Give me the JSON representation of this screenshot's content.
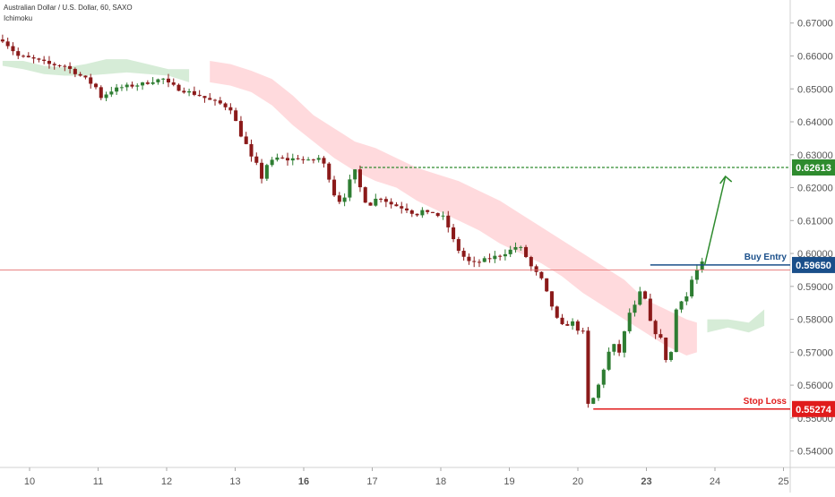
{
  "header": {
    "title": "Australian Dollar / U.S. Dollar, 60, SAXO",
    "indicator": "Ichimoku"
  },
  "colors": {
    "up_candle": "#2e7d32",
    "down_candle": "#8b1a1a",
    "cloud_bull": "#c8e6c9",
    "cloud_bear": "#ffcdd2",
    "target_line": "#2e8b2e",
    "buy_entry": "#1a4f8a",
    "stop_loss": "#e01b1b",
    "price_line": "#e57373",
    "axis_text": "#555555"
  },
  "chart_data": {
    "type": "candlestick",
    "symbol": "Australian Dollar / U.S. Dollar",
    "timeframe": "60",
    "source": "SAXO",
    "ylim": [
      0.535,
      0.677
    ],
    "y_ticks": [
      "0.67000",
      "0.66000",
      "0.65000",
      "0.64000",
      "0.63000",
      "0.62000",
      "0.61000",
      "0.60000",
      "0.59000",
      "0.58000",
      "0.57000",
      "0.56000",
      "0.55000",
      "0.54000"
    ],
    "x_ticks": [
      "10",
      "11",
      "12",
      "13",
      "16",
      "17",
      "18",
      "19",
      "20",
      "23",
      "24",
      "25"
    ],
    "x_tick_bold": [
      false,
      false,
      false,
      false,
      true,
      false,
      false,
      false,
      false,
      true,
      false,
      false
    ],
    "close_path": [
      [
        0,
        0.665
      ],
      [
        3,
        0.66
      ],
      [
        6,
        0.659
      ],
      [
        9,
        0.6575
      ],
      [
        12,
        0.657
      ],
      [
        14,
        0.655
      ],
      [
        16,
        0.653
      ],
      [
        18,
        0.6505
      ],
      [
        19,
        0.6475
      ],
      [
        21,
        0.6495
      ],
      [
        23,
        0.6505
      ],
      [
        25,
        0.651
      ],
      [
        27,
        0.6515
      ],
      [
        29,
        0.6525
      ],
      [
        31,
        0.653
      ],
      [
        32,
        0.6515
      ],
      [
        34,
        0.65
      ],
      [
        36,
        0.649
      ],
      [
        38,
        0.648
      ],
      [
        40,
        0.6465
      ],
      [
        42,
        0.6455
      ],
      [
        44,
        0.644
      ],
      [
        45,
        0.64
      ],
      [
        46,
        0.636
      ],
      [
        47,
        0.633
      ],
      [
        48,
        0.629
      ],
      [
        49,
        0.627
      ],
      [
        50,
        0.623
      ],
      [
        51,
        0.627
      ],
      [
        53,
        0.629
      ],
      [
        55,
        0.6285
      ],
      [
        57,
        0.629
      ],
      [
        59,
        0.628
      ],
      [
        61,
        0.629
      ],
      [
        62,
        0.627
      ],
      [
        63,
        0.623
      ],
      [
        64,
        0.618
      ],
      [
        65,
        0.616
      ],
      [
        66,
        0.6175
      ],
      [
        67,
        0.622
      ],
      [
        68,
        0.625
      ],
      [
        69,
        0.62
      ],
      [
        70,
        0.616
      ],
      [
        71,
        0.615
      ],
      [
        72,
        0.6165
      ],
      [
        73,
        0.617
      ],
      [
        74,
        0.616
      ],
      [
        75,
        0.615
      ],
      [
        76,
        0.6145
      ],
      [
        77,
        0.614
      ],
      [
        78,
        0.6135
      ],
      [
        79,
        0.6125
      ],
      [
        80,
        0.612
      ],
      [
        81,
        0.613
      ],
      [
        82,
        0.612
      ],
      [
        83,
        0.6125
      ],
      [
        84,
        0.6115
      ],
      [
        85,
        0.611
      ],
      [
        86,
        0.608
      ],
      [
        87,
        0.604
      ],
      [
        88,
        0.601
      ],
      [
        89,
        0.599
      ],
      [
        90,
        0.5975
      ],
      [
        91,
        0.597
      ],
      [
        92,
        0.5975
      ],
      [
        94,
        0.5985
      ],
      [
        96,
        0.5995
      ],
      [
        98,
        0.601
      ],
      [
        99,
        0.602
      ],
      [
        100,
        0.6015
      ],
      [
        101,
        0.599
      ],
      [
        102,
        0.596
      ],
      [
        103,
        0.594
      ],
      [
        104,
        0.592
      ],
      [
        105,
        0.588
      ],
      [
        106,
        0.584
      ],
      [
        107,
        0.58
      ],
      [
        108,
        0.578
      ],
      [
        110,
        0.579
      ],
      [
        111,
        0.577
      ],
      [
        112,
        0.576
      ],
      [
        113,
        0.554
      ],
      [
        114,
        0.556
      ],
      [
        115,
        0.56
      ],
      [
        116,
        0.565
      ],
      [
        117,
        0.57
      ],
      [
        118,
        0.572
      ],
      [
        119,
        0.57
      ],
      [
        120,
        0.576
      ],
      [
        121,
        0.582
      ],
      [
        122,
        0.584
      ],
      [
        123,
        0.588
      ],
      [
        124,
        0.586
      ],
      [
        125,
        0.579
      ],
      [
        126,
        0.576
      ],
      [
        127,
        0.574
      ],
      [
        128,
        0.568
      ],
      [
        129,
        0.57
      ],
      [
        130,
        0.583
      ],
      [
        131,
        0.586
      ],
      [
        132,
        0.587
      ],
      [
        133,
        0.592
      ],
      [
        134,
        0.595
      ],
      [
        135,
        0.597
      ]
    ],
    "cloud": [
      [
        0,
        0.6585,
        0.657
      ],
      [
        4,
        0.6585,
        0.656
      ],
      [
        8,
        0.657,
        0.6545
      ],
      [
        12,
        0.6565,
        0.654
      ],
      [
        16,
        0.6575,
        0.654
      ],
      [
        20,
        0.659,
        0.6545
      ],
      [
        24,
        0.659,
        0.655
      ],
      [
        28,
        0.6575,
        0.6545
      ],
      [
        32,
        0.656,
        0.654
      ],
      [
        36,
        0.656,
        0.652
      ],
      [
        40,
        0.6585,
        0.652
      ],
      [
        44,
        0.6575,
        0.651
      ],
      [
        48,
        0.6555,
        0.649
      ],
      [
        52,
        0.653,
        0.645
      ],
      [
        56,
        0.648,
        0.639
      ],
      [
        60,
        0.642,
        0.634
      ],
      [
        64,
        0.638,
        0.629
      ],
      [
        68,
        0.634,
        0.625
      ],
      [
        72,
        0.632,
        0.622
      ],
      [
        76,
        0.629,
        0.62
      ],
      [
        80,
        0.626,
        0.616
      ],
      [
        84,
        0.624,
        0.613
      ],
      [
        88,
        0.622,
        0.61
      ],
      [
        92,
        0.619,
        0.607
      ],
      [
        96,
        0.616,
        0.603
      ],
      [
        100,
        0.612,
        0.6
      ],
      [
        104,
        0.608,
        0.597
      ],
      [
        108,
        0.604,
        0.593
      ],
      [
        112,
        0.6,
        0.588
      ],
      [
        116,
        0.596,
        0.584
      ],
      [
        120,
        0.592,
        0.58
      ],
      [
        124,
        0.586,
        0.576
      ],
      [
        128,
        0.583,
        0.572
      ],
      [
        132,
        0.58,
        0.569
      ],
      [
        134,
        0.579,
        0.57
      ],
      [
        136,
        0.58,
        0.576
      ],
      [
        140,
        0.58,
        0.5775
      ],
      [
        144,
        0.579,
        0.576
      ],
      [
        147,
        0.583,
        0.578
      ]
    ],
    "bear_cloud_range": [
      38,
      135
    ],
    "levels": [
      {
        "name": "Buy Entry",
        "price_label": "0.59650",
        "value": 0.5965
      },
      {
        "name": "Stop Loss",
        "price_label": "0.55274",
        "value": 0.55274
      },
      {
        "name": "target",
        "price_label": "0.62613",
        "value": 0.62613
      }
    ],
    "current_price_line": 0.595
  }
}
